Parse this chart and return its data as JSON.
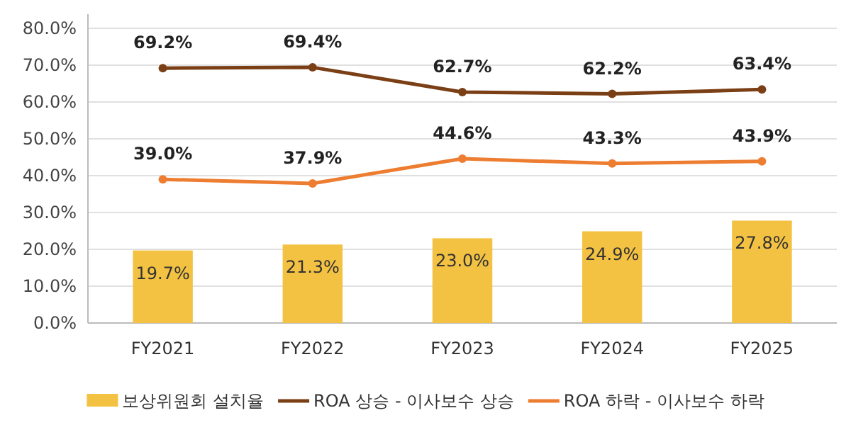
{
  "chart_data": {
    "type": "bar",
    "categories": [
      "FY2021",
      "FY2022",
      "FY2023",
      "FY2024",
      "FY2025"
    ],
    "series": [
      {
        "name": "보상위원회 설치율",
        "color": "#f4c242",
        "values": [
          19.7,
          21.3,
          23.0,
          24.9,
          27.8
        ],
        "value_labels": [
          "19.7%",
          "21.3%",
          "23.0%",
          "24.9%",
          "27.8%"
        ]
      },
      {
        "name": "ROA 상승 - 이사보수 상승",
        "type": "line",
        "color": "#7b3f16",
        "values": [
          69.2,
          69.4,
          62.7,
          62.2,
          63.4
        ],
        "value_labels": [
          "69.2%",
          "69.4%",
          "62.7%",
          "62.2%",
          "63.4%"
        ]
      },
      {
        "name": "ROA 하락 - 이사보수 하락",
        "type": "line",
        "color": "#ed7d31",
        "values": [
          39.0,
          37.9,
          44.6,
          43.3,
          43.9
        ],
        "value_labels": [
          "39.0%",
          "37.9%",
          "44.6%",
          "43.3%",
          "43.9%"
        ]
      }
    ],
    "ylim": [
      0,
      80
    ],
    "yticks": [
      {
        "value": 0,
        "label": "0.0%"
      },
      {
        "value": 10,
        "label": "10.0%"
      },
      {
        "value": 20,
        "label": "20.0%"
      },
      {
        "value": 30,
        "label": "30.0%"
      },
      {
        "value": 40,
        "label": "40.0%"
      },
      {
        "value": 50,
        "label": "50.0%"
      },
      {
        "value": 60,
        "label": "60.0%"
      },
      {
        "value": 70,
        "label": "70.0%"
      },
      {
        "value": 80,
        "label": "80.0%"
      }
    ],
    "grid": "y",
    "legend": "bottom",
    "marker": "circle"
  }
}
